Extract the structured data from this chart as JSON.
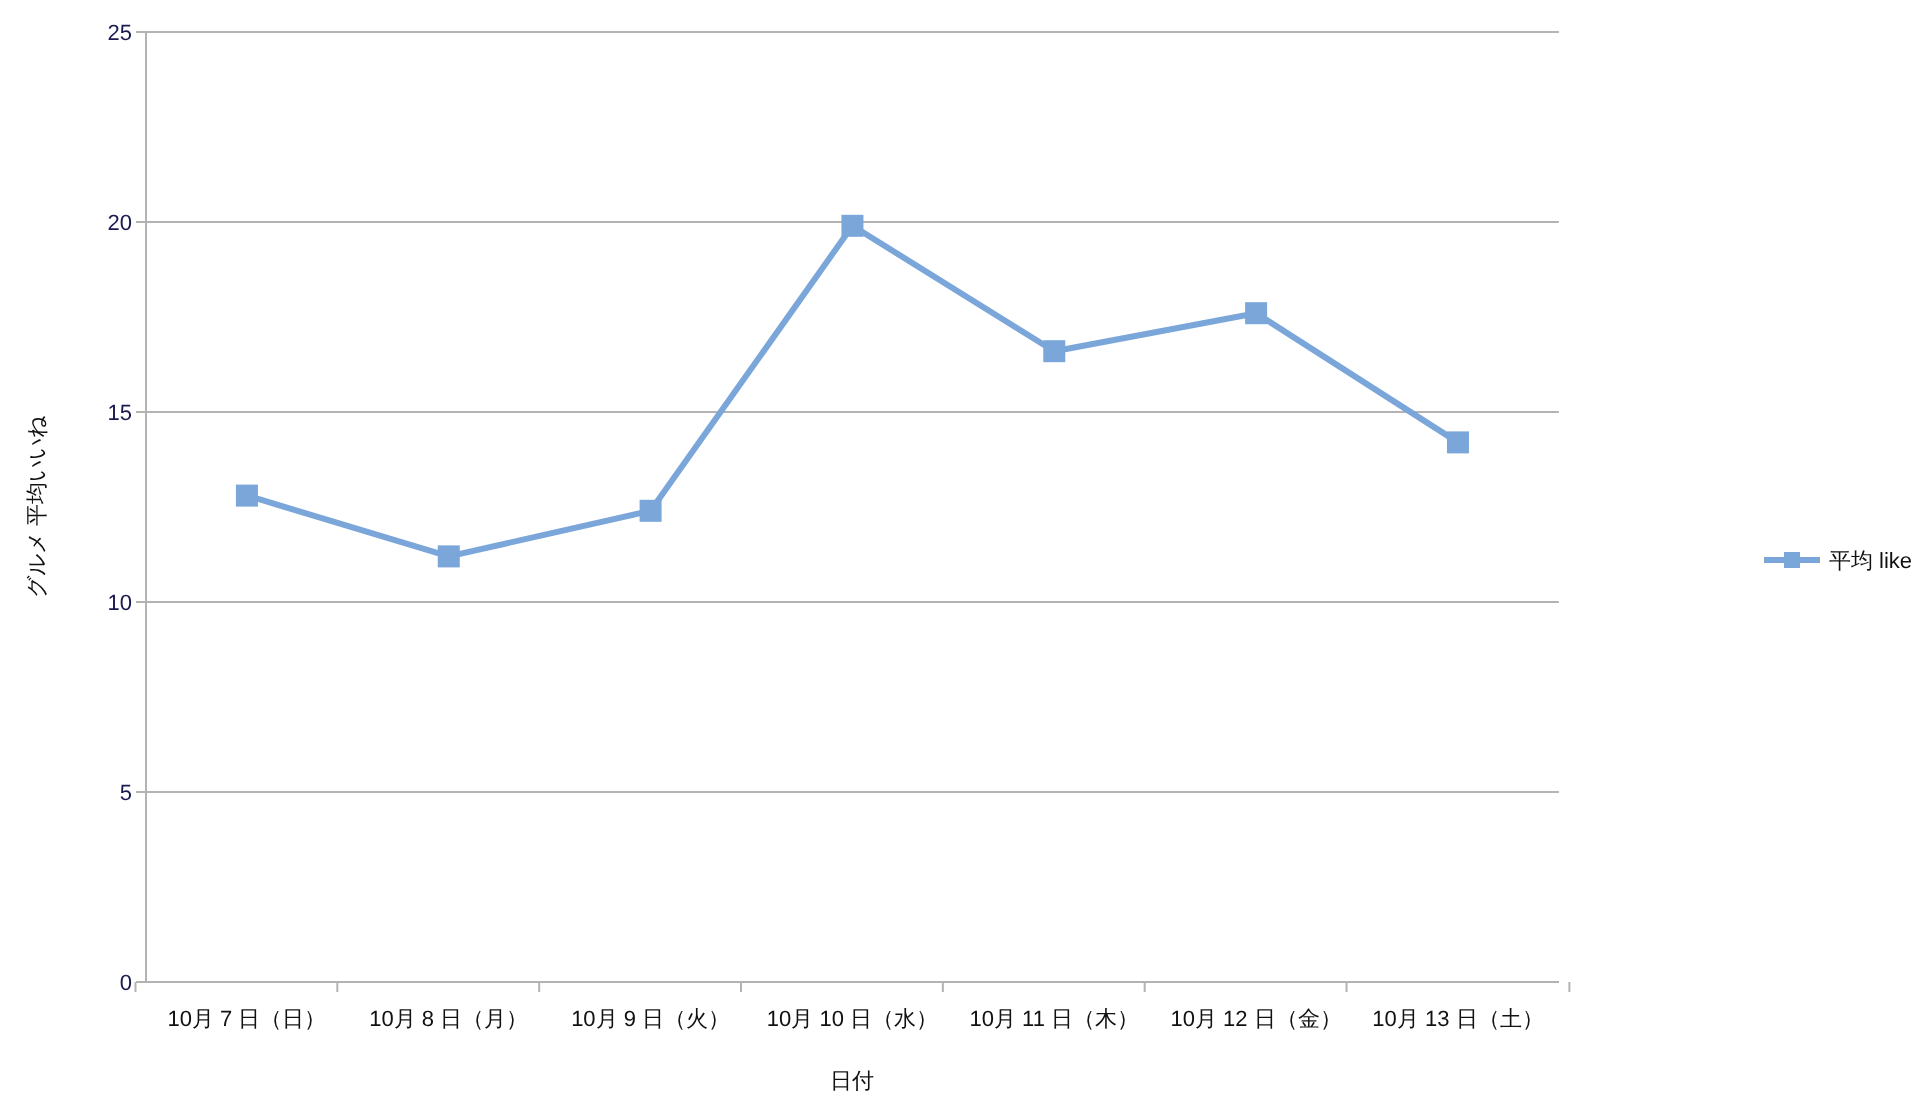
{
  "chart_data": {
    "type": "line",
    "xlabel": "日付",
    "ylabel": "グルメ 平均いいね",
    "categories": [
      "10月 7 日（日）",
      "10月 8 日（月）",
      "10月 9 日（火）",
      "10月 10 日（水）",
      "10月 11 日（木）",
      "10月 12 日（金）",
      "10月 13 日（土）"
    ],
    "series": [
      {
        "name": "平均 like",
        "color": "#7aa6da",
        "values": [
          12.8,
          11.2,
          12.4,
          19.9,
          16.6,
          17.6,
          14.2
        ]
      }
    ],
    "ylim": [
      0,
      25
    ],
    "yticks": [
      0,
      5,
      10,
      15,
      20,
      25
    ],
    "grid": "y",
    "legend": "right",
    "marker": "square",
    "line_style": "solid"
  }
}
